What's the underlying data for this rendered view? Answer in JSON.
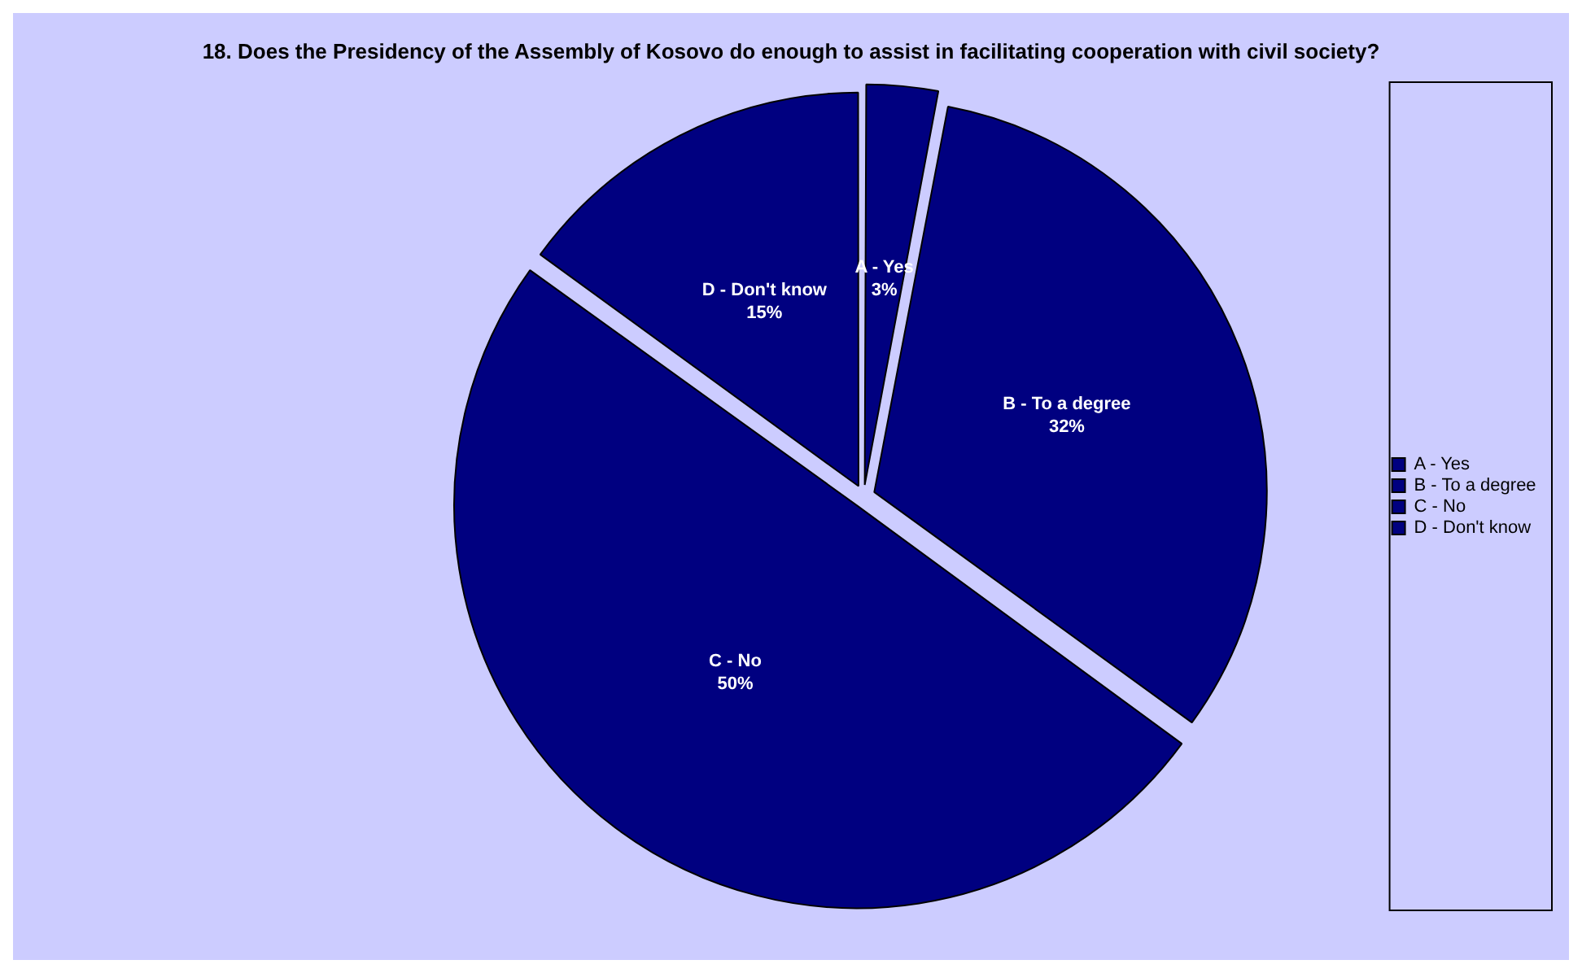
{
  "chart_data": {
    "type": "pie",
    "title": "18. Does the Presidency of the Assembly of Kosovo do enough to assist in facilitating cooperation with civil society?",
    "categories": [
      "A - Yes",
      "B - To a degree",
      "C - No",
      "D - Don't know"
    ],
    "values": [
      3,
      32,
      50,
      15
    ],
    "value_labels": [
      "3%",
      "32%",
      "50%",
      "15%"
    ],
    "colors": [
      "#000080",
      "#000080",
      "#000080",
      "#000080"
    ],
    "legend": "right"
  }
}
